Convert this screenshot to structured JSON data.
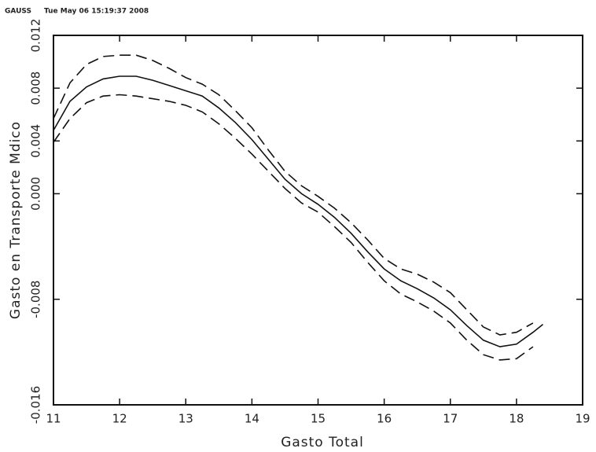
{
  "chart_data": {
    "type": "line",
    "header": "GAUSS",
    "timestamp": "Tue May 06 15:19:37 2008",
    "x_label": "Gasto Total",
    "y_label": "Gasto en Transporte Mdico",
    "x": [
      11,
      11.25,
      11.5,
      11.75,
      12,
      12.25,
      12.5,
      12.75,
      13,
      13.25,
      13.5,
      13.75,
      14,
      14.25,
      14.5,
      14.75,
      15,
      15.25,
      15.5,
      15.75,
      16,
      16.25,
      16.5,
      16.75,
      17,
      17.25,
      17.5,
      17.75,
      18,
      18.25,
      18.4
    ],
    "series": [
      {
        "color": "#111111",
        "dashed": false,
        "values": [
          0.0048,
          0.007,
          0.0081,
          0.0087,
          0.0089,
          0.0089,
          0.0086,
          0.0082,
          0.0078,
          0.0074,
          0.0065,
          0.0054,
          0.0041,
          0.0026,
          0.0011,
          0.0,
          -0.0008,
          -0.0018,
          -0.003,
          -0.0044,
          -0.0057,
          -0.0066,
          -0.0072,
          -0.0079,
          -0.0088,
          -0.01,
          -0.0111,
          -0.0116,
          -0.0114,
          -0.0105,
          -0.0099
        ]
      },
      {
        "color": "#111111",
        "dashed": true,
        "values": [
          0.0057,
          0.0084,
          0.0098,
          0.0104,
          0.0105,
          0.0105,
          0.0101,
          0.0095,
          0.0088,
          0.0083,
          0.0075,
          0.0063,
          0.005,
          0.0033,
          0.0017,
          0.0006,
          -0.0002,
          -0.0011,
          -0.0022,
          -0.0035,
          -0.0049,
          -0.0057,
          -0.0061,
          -0.0067,
          -0.0075,
          -0.0088,
          -0.0101,
          -0.0107,
          -0.0105,
          -0.0098,
          null
        ]
      },
      {
        "color": "#111111",
        "dashed": true,
        "values": [
          0.0039,
          0.0057,
          0.0069,
          0.0074,
          0.0075,
          0.0074,
          0.0072,
          0.007,
          0.0067,
          0.0062,
          0.0053,
          0.0042,
          0.003,
          0.0017,
          0.0004,
          -0.0007,
          -0.0014,
          -0.0025,
          -0.0037,
          -0.0052,
          -0.0066,
          -0.0076,
          -0.0082,
          -0.0089,
          -0.0098,
          -0.0111,
          -0.0122,
          -0.0126,
          -0.0125,
          -0.0116,
          null
        ]
      }
    ],
    "xlim": [
      11,
      19
    ],
    "xticks": [
      11,
      12,
      13,
      14,
      15,
      16,
      17,
      18,
      19
    ],
    "ylim": [
      -0.016,
      0.012
    ],
    "yticks": [
      0.012,
      0.008,
      0.004,
      {
        "value": 0,
        "label": "0.000"
      },
      -0.008,
      -0.016
    ]
  }
}
